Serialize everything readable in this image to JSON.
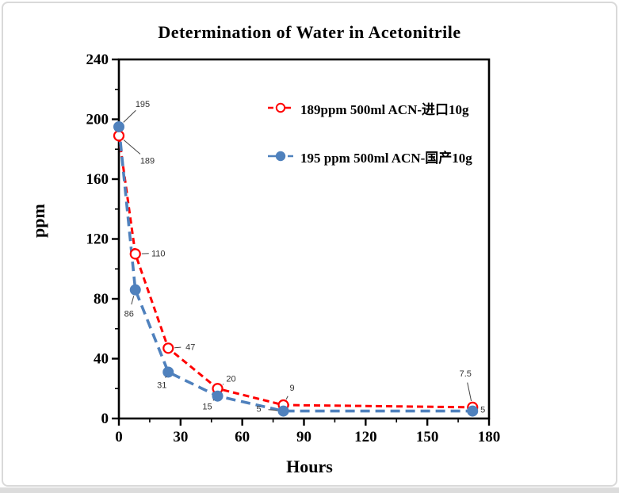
{
  "page": {
    "background": "#ffffff",
    "border_color": "#d9d9d9",
    "bottom_strip_color": "#dcdcdc"
  },
  "chart_data": {
    "type": "line",
    "title": "Determination of Water in Acetonitrile",
    "xlabel": "Hours",
    "ylabel": "ppm",
    "xlim": [
      0,
      180
    ],
    "ylim": [
      0,
      240
    ],
    "xticks": [
      0,
      30,
      60,
      90,
      120,
      150,
      180
    ],
    "xminor_step": 15,
    "yticks": [
      0,
      40,
      80,
      120,
      160,
      200,
      240
    ],
    "yminor_step": 20,
    "grid": false,
    "legend_position": "upper-right-inside",
    "axis_color": "#000000",
    "annotation_color": "#333333",
    "series": [
      {
        "name": "189ppm  500ml ACN-进口10g",
        "color": "#ff0000",
        "line_style": "dashed",
        "marker": "open-circle",
        "points": [
          {
            "x": 0,
            "y": 189,
            "label": "189",
            "label_dx": 36,
            "label_dy": 31
          },
          {
            "x": 8,
            "y": 110,
            "label": "110",
            "label_dx": 29,
            "label_dy": -1
          },
          {
            "x": 24,
            "y": 47,
            "label": "47",
            "label_dx": 28,
            "label_dy": -2
          },
          {
            "x": 48,
            "y": 20,
            "label": "20",
            "label_dx": 17,
            "label_dy": -13
          },
          {
            "x": 80,
            "y": 9,
            "label": "9",
            "label_dx": 11,
            "label_dy": -22
          },
          {
            "x": 172,
            "y": 7.5,
            "label": "7.5",
            "label_dx": -9,
            "label_dy": -43
          }
        ]
      },
      {
        "name": "195 ppm 500ml ACN-国产10g",
        "color": "#4f81bd",
        "line_style": "dashed-long",
        "marker": "filled-circle",
        "points": [
          {
            "x": 0,
            "y": 195,
            "label": "195",
            "label_dx": 30,
            "label_dy": -29
          },
          {
            "x": 8,
            "y": 86,
            "label": "86",
            "label_dx": -8,
            "label_dy": 30
          },
          {
            "x": 24,
            "y": 31,
            "label": "31",
            "label_dx": -8,
            "label_dy": 16
          },
          {
            "x": 48,
            "y": 15,
            "label": "15",
            "label_dx": -13,
            "label_dy": 13
          },
          {
            "x": 80,
            "y": 5,
            "label": "5",
            "label_dx": -31,
            "label_dy": -3
          },
          {
            "x": 172,
            "y": 5,
            "label": "5",
            "label_dx": 13,
            "label_dy": -2
          }
        ]
      }
    ]
  }
}
